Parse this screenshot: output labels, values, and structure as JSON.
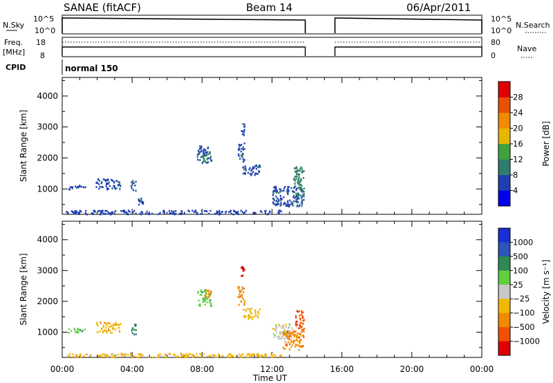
{
  "header": {
    "title": "SANAE (fitACF)",
    "beam": "Beam 14",
    "date": "06/Apr/2011"
  },
  "params": {
    "nsky_label": "N.Sky",
    "nsearch_label": "N.Search",
    "freq_label": "Freq.",
    "freq_unit": "[MHz]",
    "nave_label": "Nave",
    "cpid_label": "CPID",
    "cpid_value": "normal 150",
    "noise_ticks": [
      "10^5",
      "10^0"
    ],
    "freq_ticks_left": [
      "18",
      "8"
    ],
    "nave_ticks_right": [
      "80",
      "0"
    ]
  },
  "chart_data": [
    {
      "type": "heatmap",
      "panel": "power",
      "ylabel": "Slant Range [km]",
      "xlabel": "Time UT",
      "x_ticks": [
        "00:00",
        "04:00",
        "08:00",
        "12:00",
        "16:00",
        "20:00",
        "00:00"
      ],
      "y_ticks": [
        1000,
        2000,
        3000,
        4000
      ],
      "xlim_hours": [
        0,
        24
      ],
      "ylim_km": [
        180,
        4600
      ],
      "colorbar_label": "Power [dB]",
      "colorbar_ticks": [
        "4",
        "8",
        "12",
        "16",
        "20",
        "24",
        "28"
      ],
      "colorbar_colors": [
        "#0000ee",
        "#1f3fb0",
        "#2e7d6f",
        "#3fa23f",
        "#e6b800",
        "#f08a00",
        "#e85000",
        "#e00000"
      ],
      "clusters": [
        {
          "t0": 0.3,
          "t1": 1.3,
          "r0": 1000,
          "r1": 1150,
          "level": 1
        },
        {
          "t0": 1.9,
          "t1": 3.3,
          "r0": 1000,
          "r1": 1350,
          "level": 1
        },
        {
          "t0": 3.9,
          "t1": 4.2,
          "r0": 950,
          "r1": 1300,
          "level": 1
        },
        {
          "t0": 4.3,
          "t1": 4.6,
          "r0": 500,
          "r1": 750,
          "level": 1
        },
        {
          "t0": 7.7,
          "t1": 8.5,
          "r0": 1850,
          "r1": 2400,
          "level": 1
        },
        {
          "t0": 8.0,
          "t1": 8.3,
          "r0": 1900,
          "r1": 2150,
          "level": 2
        },
        {
          "t0": 10.0,
          "t1": 10.4,
          "r0": 1900,
          "r1": 2500,
          "level": 1
        },
        {
          "t0": 10.2,
          "t1": 10.4,
          "r0": 2750,
          "r1": 3150,
          "level": 1
        },
        {
          "t0": 10.3,
          "t1": 11.3,
          "r0": 1450,
          "r1": 1800,
          "level": 1
        },
        {
          "t0": 12.0,
          "t1": 13.8,
          "r0": 450,
          "r1": 1100,
          "level": 1
        },
        {
          "t0": 13.2,
          "t1": 13.8,
          "r0": 800,
          "r1": 1750,
          "level": 2
        },
        {
          "t0": 0.2,
          "t1": 12.5,
          "r0": 200,
          "r1": 330,
          "level": 0
        }
      ]
    },
    {
      "type": "heatmap",
      "panel": "velocity",
      "ylabel": "Slant Range [km]",
      "xlabel": "Time UT",
      "x_ticks": [
        "00:00",
        "04:00",
        "08:00",
        "12:00",
        "16:00",
        "20:00",
        "00:00"
      ],
      "y_ticks": [
        1000,
        2000,
        3000,
        4000
      ],
      "xlim_hours": [
        0,
        24
      ],
      "ylim_km": [
        180,
        4600
      ],
      "colorbar_label": "Velocity [m s⁻¹]",
      "colorbar_ticks": [
        "1000",
        "500",
        "100",
        "25",
        "−25",
        "−100",
        "−500",
        "−1000"
      ],
      "colorbar_colors": [
        "#1a2fd6",
        "#2b55b8",
        "#2e8a50",
        "#5fd040",
        "#c8c8c8",
        "#f0b800",
        "#f08a00",
        "#f05000",
        "#e00000"
      ],
      "clusters": [
        {
          "t0": 0.3,
          "t1": 1.3,
          "r0": 1000,
          "r1": 1150,
          "level": 3
        },
        {
          "t0": 1.9,
          "t1": 3.3,
          "r0": 1000,
          "r1": 1350,
          "level": 5
        },
        {
          "t0": 3.9,
          "t1": 4.2,
          "r0": 950,
          "r1": 1300,
          "level": 2
        },
        {
          "t0": 7.7,
          "t1": 8.5,
          "r0": 1850,
          "r1": 2400,
          "level": 3
        },
        {
          "t0": 8.1,
          "t1": 8.5,
          "r0": 2150,
          "r1": 2400,
          "level": 6
        },
        {
          "t0": 10.0,
          "t1": 10.4,
          "r0": 1900,
          "r1": 2500,
          "level": 6
        },
        {
          "t0": 10.2,
          "t1": 10.4,
          "r0": 2750,
          "r1": 3150,
          "level": 8
        },
        {
          "t0": 10.3,
          "t1": 11.3,
          "r0": 1450,
          "r1": 1800,
          "level": 5
        },
        {
          "t0": 12.0,
          "t1": 13.2,
          "r0": 800,
          "r1": 1300,
          "level": 4
        },
        {
          "t0": 12.6,
          "t1": 13.8,
          "r0": 450,
          "r1": 1100,
          "level": 6
        },
        {
          "t0": 13.3,
          "t1": 13.8,
          "r0": 1100,
          "r1": 1750,
          "level": 7
        },
        {
          "t0": 0.2,
          "t1": 12.5,
          "r0": 200,
          "r1": 330,
          "level": 5
        }
      ]
    }
  ],
  "series_overview": {
    "noise_segments": [
      [
        0,
        13.9
      ],
      [
        15.6,
        24
      ]
    ],
    "freq_segments": [
      [
        0,
        13.9
      ],
      [
        15.6,
        24
      ]
    ]
  }
}
